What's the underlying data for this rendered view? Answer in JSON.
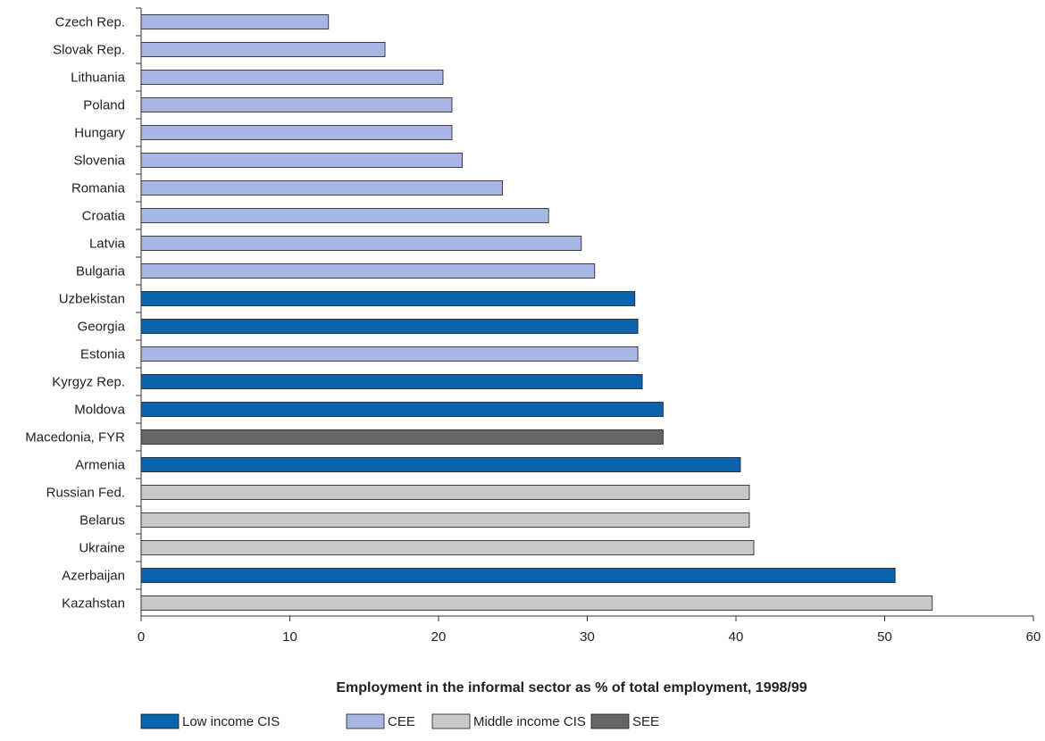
{
  "chart_data": {
    "type": "bar",
    "orientation": "horizontal",
    "title": "",
    "xlabel": "Employment in the informal sector as % of total employment, 1998/99",
    "ylabel": "",
    "xlim": [
      0,
      60
    ],
    "xticks": [
      0,
      10,
      20,
      30,
      40,
      50,
      60
    ],
    "grid": false,
    "legend_position": "bottom-left",
    "groups": [
      {
        "name": "Low income CIS",
        "color": "#0a63ad"
      },
      {
        "name": "CEE",
        "color": "#a7b6e3"
      },
      {
        "name": "Middle income CIS",
        "color": "#c8c8c8"
      },
      {
        "name": "SEE",
        "color": "#666666"
      }
    ],
    "bars": [
      {
        "category": "Czech Rep.",
        "value": 12.6,
        "group": "CEE"
      },
      {
        "category": "Slovak Rep.",
        "value": 16.4,
        "group": "CEE"
      },
      {
        "category": "Lithuania",
        "value": 20.3,
        "group": "CEE"
      },
      {
        "category": "Poland",
        "value": 20.9,
        "group": "CEE"
      },
      {
        "category": "Hungary",
        "value": 20.9,
        "group": "CEE"
      },
      {
        "category": "Slovenia",
        "value": 21.6,
        "group": "CEE"
      },
      {
        "category": "Romania",
        "value": 24.3,
        "group": "CEE"
      },
      {
        "category": "Croatia",
        "value": 27.4,
        "group": "CEE"
      },
      {
        "category": "Latvia",
        "value": 29.6,
        "group": "CEE"
      },
      {
        "category": "Bulgaria",
        "value": 30.5,
        "group": "CEE"
      },
      {
        "category": "Uzbekistan",
        "value": 33.2,
        "group": "Low income CIS"
      },
      {
        "category": "Georgia",
        "value": 33.4,
        "group": "Low income CIS"
      },
      {
        "category": "Estonia",
        "value": 33.4,
        "group": "CEE"
      },
      {
        "category": "Kyrgyz Rep.",
        "value": 33.7,
        "group": "Low income CIS"
      },
      {
        "category": "Moldova",
        "value": 35.1,
        "group": "Low income CIS"
      },
      {
        "category": "Macedonia, FYR",
        "value": 35.1,
        "group": "SEE"
      },
      {
        "category": "Armenia",
        "value": 40.3,
        "group": "Low income CIS"
      },
      {
        "category": "Russian Fed.",
        "value": 40.9,
        "group": "Middle income CIS"
      },
      {
        "category": "Belarus",
        "value": 40.9,
        "group": "Middle income CIS"
      },
      {
        "category": "Ukraine",
        "value": 41.2,
        "group": "Middle income CIS"
      },
      {
        "category": "Azerbaijan",
        "value": 50.7,
        "group": "Low income CIS"
      },
      {
        "category": "Kazahstan",
        "value": 53.2,
        "group": "Middle income CIS"
      }
    ]
  }
}
